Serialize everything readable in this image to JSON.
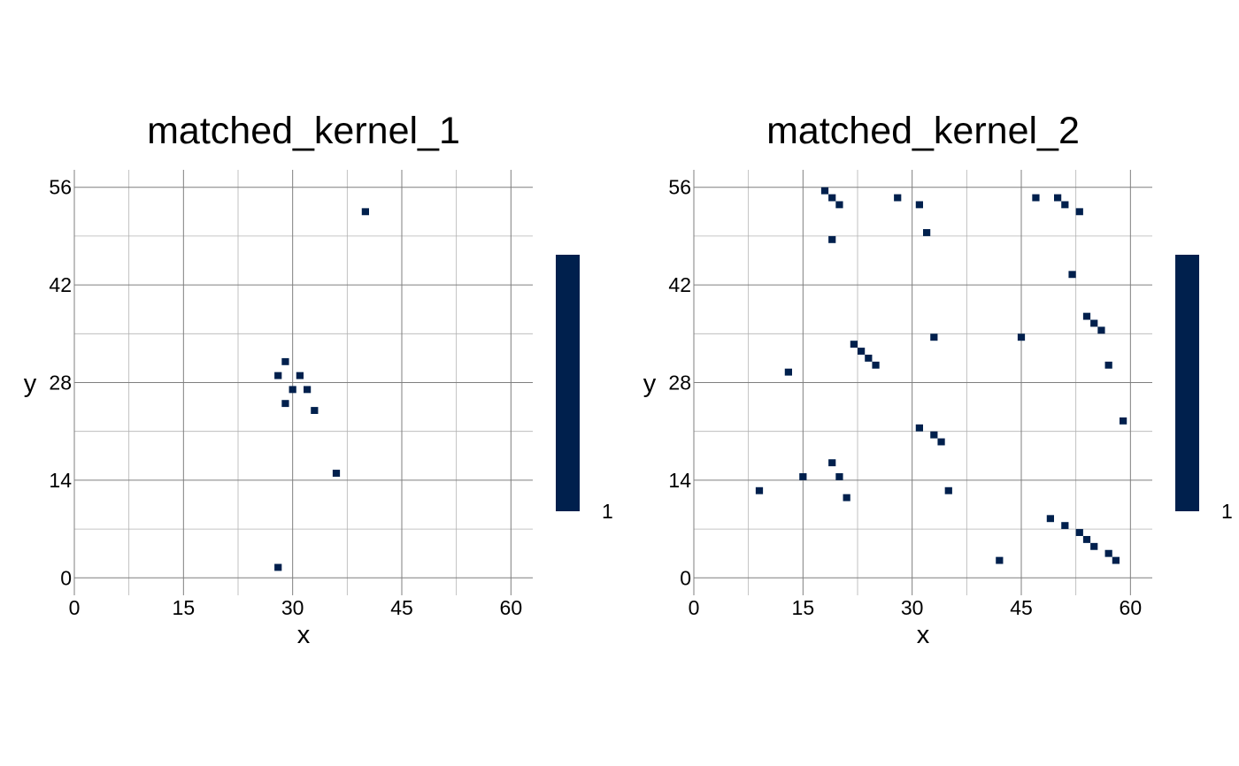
{
  "chart_data": [
    {
      "type": "heatmap",
      "title": "matched_kernel_1",
      "xlabel": "x",
      "ylabel": "y",
      "xlim": [
        0,
        63
      ],
      "ylim": [
        -2.5,
        58.5
      ],
      "xticks": [
        0,
        15,
        30,
        45,
        60
      ],
      "yticks": [
        0,
        14,
        28,
        42,
        56
      ],
      "grid": true,
      "colorbar": {
        "value": 1,
        "label": "1"
      },
      "cell_value": 1,
      "points": [
        [
          40,
          52.5
        ],
        [
          29,
          31
        ],
        [
          28,
          29
        ],
        [
          31,
          29
        ],
        [
          30,
          27
        ],
        [
          32,
          27
        ],
        [
          29,
          25
        ],
        [
          33,
          24
        ],
        [
          36,
          15
        ],
        [
          28,
          1.5
        ]
      ]
    },
    {
      "type": "heatmap",
      "title": "matched_kernel_2",
      "xlabel": "x",
      "ylabel": "y",
      "xlim": [
        0,
        63
      ],
      "ylim": [
        -2.5,
        58.5
      ],
      "xticks": [
        0,
        15,
        30,
        45,
        60
      ],
      "yticks": [
        0,
        14,
        28,
        42,
        56
      ],
      "grid": true,
      "colorbar": {
        "value": 1,
        "label": "1"
      },
      "cell_value": 1,
      "points": [
        [
          18,
          55.5
        ],
        [
          19,
          54.5
        ],
        [
          20,
          53.5
        ],
        [
          28,
          54.5
        ],
        [
          31,
          53.5
        ],
        [
          47,
          54.5
        ],
        [
          50,
          54.5
        ],
        [
          51,
          53.5
        ],
        [
          53,
          52.5
        ],
        [
          19,
          48.5
        ],
        [
          32,
          49.5
        ],
        [
          52,
          43.5
        ],
        [
          54,
          37.5
        ],
        [
          55,
          36.5
        ],
        [
          56,
          35.5
        ],
        [
          33,
          34.5
        ],
        [
          45,
          34.5
        ],
        [
          22,
          33.5
        ],
        [
          23,
          32.5
        ],
        [
          24,
          31.5
        ],
        [
          25,
          30.5
        ],
        [
          57,
          30.5
        ],
        [
          13,
          29.5
        ],
        [
          59,
          22.5
        ],
        [
          31,
          21.5
        ],
        [
          33,
          20.5
        ],
        [
          34,
          19.5
        ],
        [
          19,
          16.5
        ],
        [
          15,
          14.5
        ],
        [
          20,
          14.5
        ],
        [
          9,
          12.5
        ],
        [
          35,
          12.5
        ],
        [
          21,
          11.5
        ],
        [
          49,
          8.5
        ],
        [
          51,
          7.5
        ],
        [
          53,
          6.5
        ],
        [
          54,
          5.5
        ],
        [
          55,
          4.5
        ],
        [
          57,
          3.5
        ],
        [
          58,
          2.5
        ],
        [
          42,
          2.5
        ]
      ]
    }
  ],
  "colors": {
    "cell": "#00204d",
    "grid_major": "#7f7f7f",
    "grid_minor": "#b3b3b3"
  }
}
